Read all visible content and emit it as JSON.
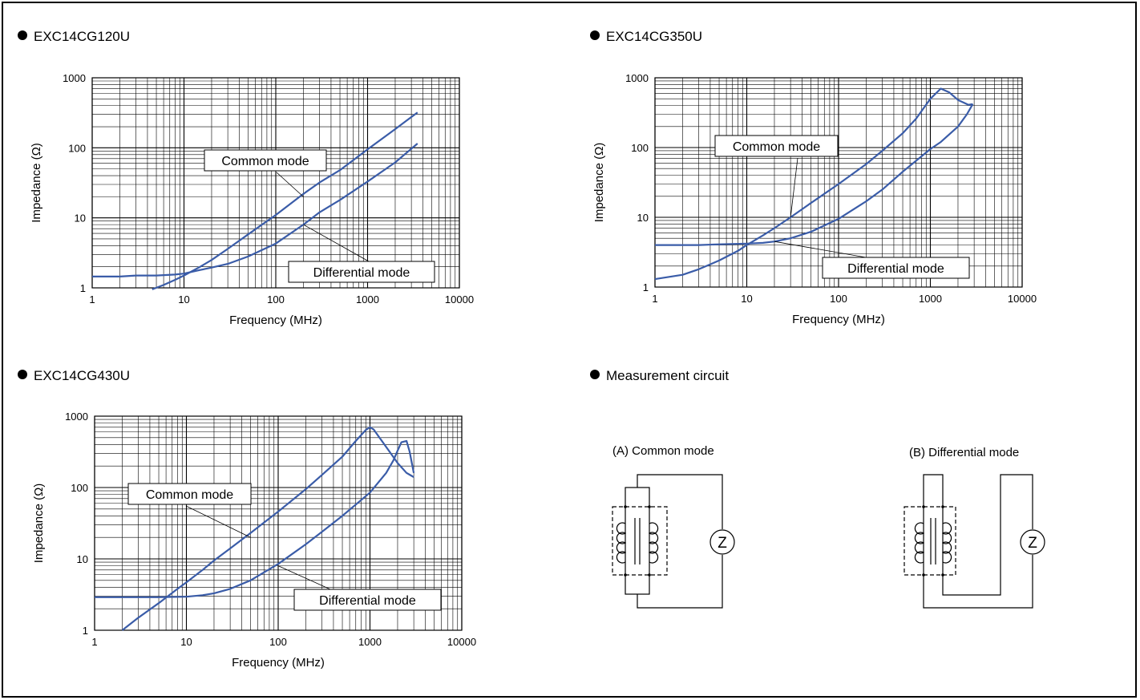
{
  "charts": [
    {
      "title": "EXC14CG120U"
    },
    {
      "title": "EXC14CG350U"
    },
    {
      "title": "EXC14CG430U"
    }
  ],
  "circuit": {
    "title": "Measurement circuit",
    "a_label": "(A) Common mode",
    "b_label": "(B) Differential mode",
    "meter_symbol": "Z"
  },
  "chart_data": [
    {
      "type": "line",
      "title": "EXC14CG120U",
      "xlabel": "Frequency (MHz)",
      "ylabel": "Impedance (Ω)",
      "x_scale": "log",
      "y_scale": "log",
      "xlim": [
        1,
        10000
      ],
      "ylim": [
        1,
        1000
      ],
      "x_ticks": [
        "1",
        "10",
        "100",
        "1000",
        "10000"
      ],
      "y_ticks": [
        "1",
        "10",
        "100",
        "1000"
      ],
      "grid": true,
      "series": [
        {
          "name": "Common mode",
          "x": [
            4.5,
            6,
            8,
            10,
            15,
            20,
            30,
            50,
            100,
            200,
            300,
            500,
            1000,
            2000,
            3500
          ],
          "y": [
            0.95,
            1.1,
            1.3,
            1.5,
            2.0,
            2.5,
            3.6,
            5.8,
            11,
            22,
            32,
            48,
            95,
            185,
            320
          ]
        },
        {
          "name": "Differential mode",
          "x": [
            1,
            2,
            3,
            5,
            8,
            10,
            15,
            20,
            30,
            50,
            100,
            200,
            300,
            500,
            1000,
            2000,
            3500
          ],
          "y": [
            1.45,
            1.45,
            1.5,
            1.5,
            1.55,
            1.6,
            1.8,
            1.95,
            2.2,
            2.8,
            4.3,
            8,
            12,
            18,
            33,
            62,
            115
          ]
        }
      ],
      "annotations": [
        {
          "text": "Common mode",
          "x": 200,
          "y": 20
        },
        {
          "text": "Differential mode",
          "x": 200,
          "y": 8
        }
      ]
    },
    {
      "type": "line",
      "title": "EXC14CG350U",
      "xlabel": "Frequency (MHz)",
      "ylabel": "Impedance (Ω)",
      "x_scale": "log",
      "y_scale": "log",
      "xlim": [
        1,
        10000
      ],
      "ylim": [
        1,
        1000
      ],
      "x_ticks": [
        "1",
        "10",
        "100",
        "1000",
        "10000"
      ],
      "y_ticks": [
        "1",
        "10",
        "100",
        "1000"
      ],
      "grid": true,
      "series": [
        {
          "name": "Common mode",
          "x": [
            1,
            2,
            3,
            5,
            8,
            10,
            15,
            20,
            30,
            50,
            100,
            200,
            300,
            500,
            700,
            1000,
            1300,
            1600,
            2000,
            2600,
            2900
          ],
          "y": [
            1.3,
            1.5,
            1.8,
            2.4,
            3.3,
            4.0,
            5.5,
            7,
            10,
            16,
            30,
            58,
            90,
            160,
            260,
            500,
            700,
            620,
            480,
            410,
            420
          ]
        },
        {
          "name": "Differential mode",
          "x": [
            1,
            3,
            5,
            10,
            15,
            20,
            30,
            50,
            100,
            200,
            300,
            500,
            1000,
            1300,
            2000,
            2500,
            2900
          ],
          "y": [
            4.0,
            4.0,
            4.1,
            4.2,
            4.3,
            4.5,
            5.0,
            6.2,
            9.5,
            17,
            25,
            45,
            95,
            120,
            200,
            300,
            420
          ]
        }
      ],
      "annotations": [
        {
          "text": "Common mode",
          "x": 30,
          "y": 10
        },
        {
          "text": "Differential mode",
          "x": 20,
          "y": 4.5
        }
      ]
    },
    {
      "type": "line",
      "title": "EXC14CG430U",
      "xlabel": "Frequency (MHz)",
      "ylabel": "Impedance (Ω)",
      "x_scale": "log",
      "y_scale": "log",
      "xlim": [
        1,
        10000
      ],
      "ylim": [
        1,
        1000
      ],
      "x_ticks": [
        "1",
        "10",
        "100",
        "1000",
        "10000"
      ],
      "y_ticks": [
        "1",
        "10",
        "100",
        "1000"
      ],
      "grid": true,
      "series": [
        {
          "name": "Common mode",
          "x": [
            2,
            3,
            5,
            8,
            10,
            15,
            20,
            30,
            50,
            100,
            200,
            300,
            500,
            700,
            900,
            1000,
            1100,
            1300,
            1600,
            2000,
            2500,
            3000
          ],
          "y": [
            1.0,
            1.5,
            2.4,
            3.8,
            4.7,
            7,
            9.5,
            14,
            23,
            46,
            95,
            150,
            270,
            450,
            640,
            700,
            650,
            480,
            330,
            220,
            160,
            140
          ]
        },
        {
          "name": "Differential mode",
          "x": [
            1,
            2,
            5,
            10,
            15,
            20,
            30,
            50,
            100,
            200,
            300,
            500,
            1000,
            1500,
            1800,
            2000,
            2200,
            2500,
            2700,
            3000
          ],
          "y": [
            2.9,
            2.9,
            2.9,
            2.95,
            3.1,
            3.3,
            3.8,
            5,
            8.5,
            16,
            24,
            40,
            85,
            160,
            240,
            330,
            430,
            450,
            320,
            160
          ]
        }
      ],
      "annotations": [
        {
          "text": "Common mode",
          "x": 50,
          "y": 20
        },
        {
          "text": "Differential mode",
          "x": 100,
          "y": 8
        }
      ]
    }
  ],
  "colors": {
    "curve": "#3a5ca8",
    "grid": "#000000"
  },
  "icons": [
    "inductor-coil-icon",
    "impedance-meter-icon"
  ]
}
